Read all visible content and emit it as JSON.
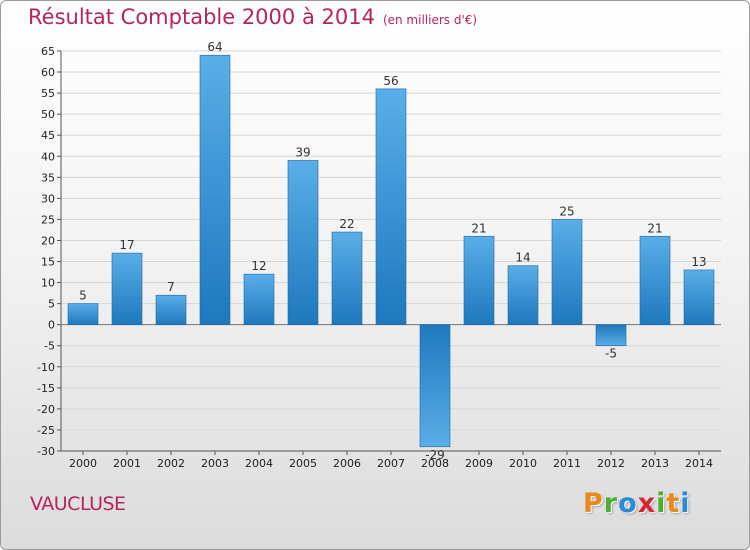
{
  "header": {
    "title": "Résultat Comptable 2000 à 2014",
    "subtitle": "(en milliers d'€)"
  },
  "footer": {
    "region": "VAUCLUSE",
    "logo": {
      "letters": [
        "P",
        "r",
        "o",
        "x",
        "i",
        "t",
        "i"
      ]
    }
  },
  "colors": {
    "accent": "#b5245c",
    "bar_light": "#5aaee8",
    "bar_dark": "#1f78bd",
    "logo_letters": [
      "#e8891c",
      "#4caf2e",
      "#2b8ad6",
      "#d8262f",
      "#4caf2e",
      "#e8891c",
      "#2b8ad6"
    ]
  },
  "chart_data": {
    "type": "bar",
    "categories": [
      "2000",
      "2001",
      "2002",
      "2003",
      "2004",
      "2005",
      "2006",
      "2007",
      "2008",
      "2009",
      "2010",
      "2011",
      "2012",
      "2013",
      "2014"
    ],
    "values": [
      5,
      17,
      7,
      64,
      12,
      39,
      22,
      56,
      -29,
      21,
      14,
      25,
      -5,
      21,
      13
    ],
    "data_labels": [
      "5",
      "17",
      "7",
      "64",
      "12",
      "39",
      "22",
      "56",
      "-29",
      "21",
      "14",
      "25",
      "-5",
      "21",
      "13"
    ],
    "ylim": [
      -30,
      65
    ],
    "yticks": [
      "-30",
      "-25",
      "-20",
      "-15",
      "-10",
      "-5",
      "0",
      "5",
      "10",
      "15",
      "20",
      "25",
      "30",
      "35",
      "40",
      "45",
      "50",
      "55",
      "60",
      "65"
    ],
    "grid": "horizontal",
    "legend": "none"
  }
}
